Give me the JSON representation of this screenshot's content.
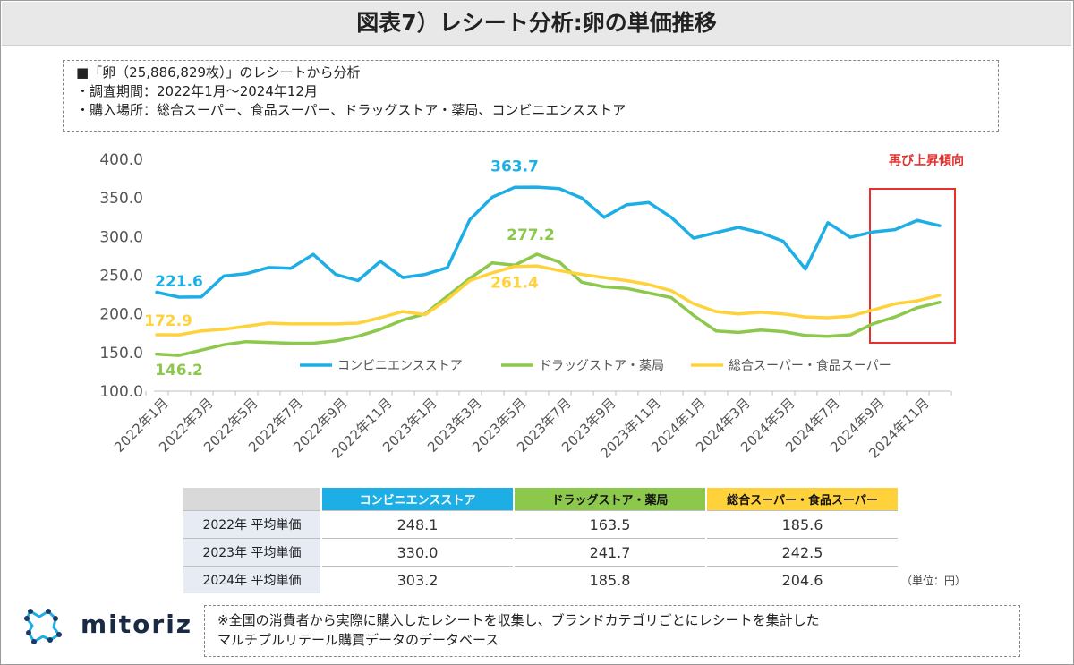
{
  "title": "図表7）レシート分析:卵の単価推移",
  "notes": [
    "■「卵（25,886,829枚）」のレシートから分析",
    "・調査期間：2022年1月〜2024年12月",
    "・購入場所：総合スーパー、食品スーパー、ドラッグストア・薬局、コンビニエンスストア"
  ],
  "colors": {
    "conv": "#1eaee6",
    "drug": "#8cc84b",
    "super": "#ffd23c",
    "highlight": "#e53030"
  },
  "chart_data": {
    "type": "line",
    "y_ticks": [
      "400.0",
      "350.0",
      "300.0",
      "250.0",
      "200.0",
      "150.0",
      "100.0"
    ],
    "ylim": [
      100,
      400
    ],
    "x_labels": [
      "2022年1月",
      "2022年3月",
      "2022年5月",
      "2022年7月",
      "2022年9月",
      "2022年11月",
      "2023年1月",
      "2023年3月",
      "2023年5月",
      "2023年7月",
      "2023年9月",
      "2023年11月",
      "2024年1月",
      "2024年3月",
      "2024年5月",
      "2024年7月",
      "2024年9月",
      "2024年11月"
    ],
    "series": [
      {
        "key": "conv",
        "name": "コンビニエンスストア",
        "values": [
          228,
          221.6,
          222,
          249,
          252,
          260,
          259,
          277,
          251,
          243,
          268,
          247,
          251,
          260,
          322,
          351,
          363.7,
          364,
          362,
          350,
          325,
          341,
          344,
          325,
          298,
          305,
          312,
          305,
          294,
          258,
          318,
          299,
          306,
          309,
          321,
          314
        ]
      },
      {
        "key": "drug",
        "name": "ドラッグストア・薬局",
        "values": [
          148,
          146.2,
          153,
          160,
          164,
          163,
          162,
          162,
          165,
          171,
          180,
          192,
          200,
          223,
          246,
          266,
          263,
          277.2,
          267,
          241,
          235,
          233,
          227,
          221,
          198,
          178,
          176,
          179,
          177,
          172,
          171,
          173,
          187,
          196,
          208,
          215
        ]
      },
      {
        "key": "super",
        "name": "総合スーパー・食品スーパー",
        "values": [
          173,
          172.9,
          178,
          180,
          184,
          188,
          187,
          187,
          187,
          188,
          195,
          203,
          199,
          219,
          243,
          253,
          261.4,
          262,
          256,
          251,
          247,
          243,
          238,
          230,
          213,
          203,
          200,
          202,
          200,
          196,
          195,
          197,
          205,
          213,
          217,
          224
        ]
      }
    ],
    "data_labels": [
      {
        "series": "conv",
        "index": 1,
        "text": "221.6"
      },
      {
        "series": "conv",
        "index": 16,
        "text": "363.7"
      },
      {
        "series": "drug",
        "index": 1,
        "text": "146.2"
      },
      {
        "series": "drug",
        "index": 17,
        "text": "277.2"
      },
      {
        "series": "super",
        "index": 1,
        "text": "172.9"
      },
      {
        "series": "super",
        "index": 16,
        "text": "261.4"
      }
    ],
    "annotation": "再び上昇傾向",
    "highlight_from_index": 32,
    "legend_position": "bottom-inside"
  },
  "table": {
    "headers": [
      "コンビニエンスストア",
      "ドラッグストア・薬局",
      "総合スーパー・食品スーパー"
    ],
    "rows": [
      {
        "label": "2022年 平均単価",
        "values": [
          "248.1",
          "163.5",
          "185.6"
        ]
      },
      {
        "label": "2023年 平均単価",
        "values": [
          "330.0",
          "241.7",
          "242.5"
        ]
      },
      {
        "label": "2024年 平均単価",
        "values": [
          "303.2",
          "185.8",
          "204.6"
        ]
      }
    ],
    "unit": "（単位：円）"
  },
  "brand": "mitoriz",
  "footnote": [
    "※全国の消費者から実際に購入したレシートを収集し、ブランドカテゴリごとにレシートを集計した",
    "マルチプルリテール購買データのデータベース"
  ]
}
